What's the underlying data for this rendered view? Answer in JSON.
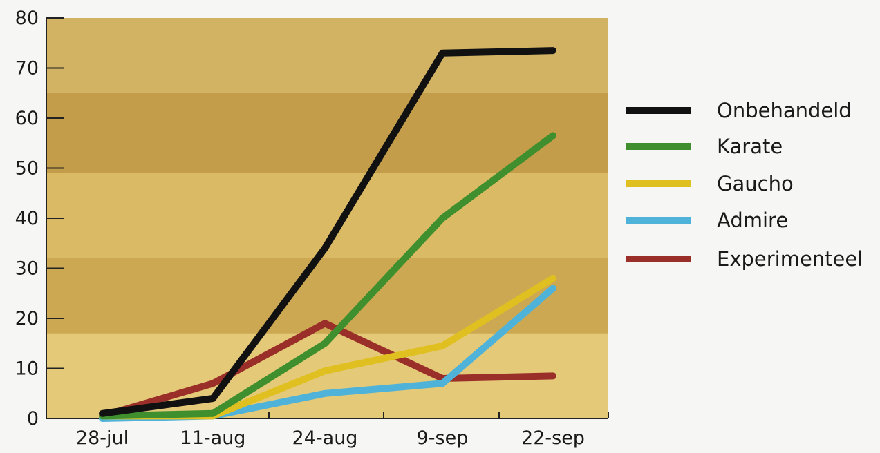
{
  "chart_data": {
    "type": "line",
    "title": "",
    "xlabel": "",
    "ylabel": "",
    "categories": [
      "28-jul",
      "11-aug",
      "24-aug",
      "9-sep",
      "22-sep"
    ],
    "ylim": [
      0,
      80
    ],
    "yticks": [
      0,
      10,
      20,
      30,
      40,
      50,
      60,
      70,
      80
    ],
    "grid": false,
    "legend_position": "right",
    "series": [
      {
        "name": "Onbehandeld",
        "color": "#111111",
        "values": [
          1,
          4,
          34,
          73,
          73.5
        ]
      },
      {
        "name": "Karate",
        "color": "#3f8f2e",
        "values": [
          0.5,
          1,
          15,
          40,
          56.5
        ]
      },
      {
        "name": "Gaucho",
        "color": "#e0c020",
        "values": [
          0.5,
          0.5,
          9.5,
          14.5,
          28
        ]
      },
      {
        "name": "Admire",
        "color": "#4fb3d9",
        "values": [
          0,
          0.5,
          5,
          7,
          26
        ]
      },
      {
        "name": "Experimenteel",
        "color": "#9a2f2a",
        "values": [
          0.5,
          7,
          19,
          8,
          8.5
        ]
      }
    ],
    "background_bands": [
      "#e3c978",
      "#c9a44e",
      "#d8b862",
      "#c09845",
      "#cfb060"
    ]
  }
}
